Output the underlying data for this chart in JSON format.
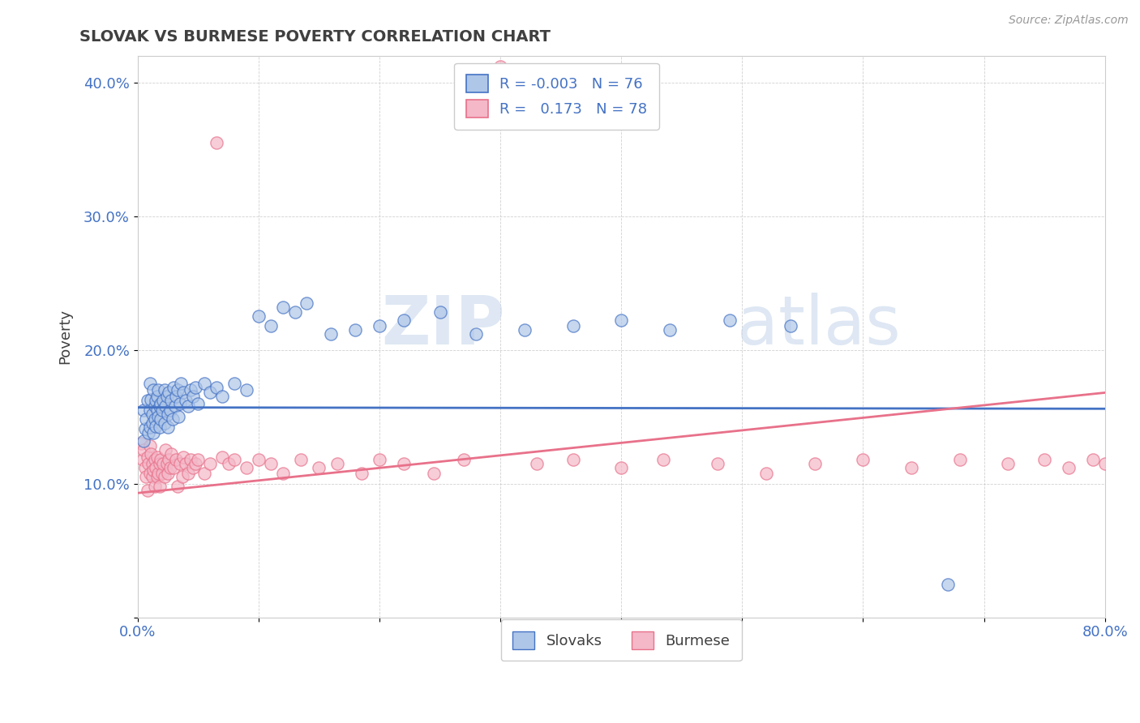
{
  "title": "SLOVAK VS BURMESE POVERTY CORRELATION CHART",
  "source": "Source: ZipAtlas.com",
  "ylabel": "Poverty",
  "xlim": [
    0.0,
    0.8
  ],
  "ylim": [
    0.0,
    0.42
  ],
  "xticks": [
    0.0,
    0.1,
    0.2,
    0.3,
    0.4,
    0.5,
    0.6,
    0.7,
    0.8
  ],
  "xticklabels": [
    "0.0%",
    "",
    "",
    "",
    "",
    "",
    "",
    "",
    "80.0%"
  ],
  "yticks": [
    0.0,
    0.1,
    0.2,
    0.3,
    0.4
  ],
  "yticklabels": [
    "",
    "10.0%",
    "20.0%",
    "30.0%",
    "40.0%"
  ],
  "slovak_color": "#aec6e8",
  "burmese_color": "#f4b8c8",
  "slovak_line_color": "#4472c4",
  "burmese_line_color": "#e8718a",
  "legend_slovak_label": "Slovaks",
  "legend_burmese_label": "Burmese",
  "R_slovak": -0.003,
  "N_slovak": 76,
  "R_burmese": 0.173,
  "N_burmese": 78,
  "watermark_zip": "ZIP",
  "watermark_atlas": "atlas",
  "title_color": "#404040",
  "axis_label_color": "#4472c4",
  "background_color": "#ffffff",
  "slovak_line_y0": 0.157,
  "slovak_line_y1": 0.156,
  "burmese_line_y0": 0.093,
  "burmese_line_y1": 0.168,
  "slovak_x": [
    0.005,
    0.005,
    0.006,
    0.007,
    0.008,
    0.009,
    0.01,
    0.01,
    0.01,
    0.011,
    0.012,
    0.012,
    0.013,
    0.013,
    0.014,
    0.014,
    0.015,
    0.015,
    0.016,
    0.016,
    0.017,
    0.017,
    0.018,
    0.018,
    0.019,
    0.019,
    0.02,
    0.021,
    0.022,
    0.022,
    0.023,
    0.024,
    0.025,
    0.025,
    0.026,
    0.027,
    0.028,
    0.029,
    0.03,
    0.031,
    0.032,
    0.033,
    0.034,
    0.035,
    0.036,
    0.038,
    0.04,
    0.042,
    0.044,
    0.046,
    0.048,
    0.05,
    0.055,
    0.06,
    0.065,
    0.07,
    0.08,
    0.09,
    0.1,
    0.11,
    0.12,
    0.13,
    0.14,
    0.16,
    0.18,
    0.2,
    0.22,
    0.25,
    0.28,
    0.32,
    0.36,
    0.4,
    0.44,
    0.49,
    0.54,
    0.67
  ],
  "slovak_y": [
    0.155,
    0.132,
    0.141,
    0.148,
    0.162,
    0.138,
    0.175,
    0.155,
    0.142,
    0.163,
    0.152,
    0.145,
    0.138,
    0.17,
    0.158,
    0.148,
    0.162,
    0.143,
    0.155,
    0.165,
    0.15,
    0.17,
    0.158,
    0.142,
    0.16,
    0.148,
    0.155,
    0.162,
    0.17,
    0.145,
    0.158,
    0.165,
    0.152,
    0.142,
    0.168,
    0.155,
    0.162,
    0.148,
    0.172,
    0.158,
    0.165,
    0.17,
    0.15,
    0.16,
    0.175,
    0.168,
    0.162,
    0.158,
    0.17,
    0.165,
    0.172,
    0.16,
    0.175,
    0.168,
    0.172,
    0.165,
    0.175,
    0.17,
    0.225,
    0.218,
    0.232,
    0.228,
    0.235,
    0.212,
    0.215,
    0.218,
    0.222,
    0.228,
    0.212,
    0.215,
    0.218,
    0.222,
    0.215,
    0.222,
    0.218,
    0.025
  ],
  "burmese_x": [
    0.003,
    0.004,
    0.005,
    0.006,
    0.007,
    0.008,
    0.008,
    0.009,
    0.01,
    0.01,
    0.011,
    0.012,
    0.012,
    0.013,
    0.014,
    0.014,
    0.015,
    0.016,
    0.016,
    0.017,
    0.018,
    0.018,
    0.019,
    0.02,
    0.021,
    0.022,
    0.023,
    0.024,
    0.025,
    0.026,
    0.027,
    0.028,
    0.03,
    0.032,
    0.033,
    0.035,
    0.037,
    0.038,
    0.04,
    0.042,
    0.044,
    0.046,
    0.048,
    0.05,
    0.055,
    0.06,
    0.065,
    0.07,
    0.075,
    0.08,
    0.09,
    0.1,
    0.11,
    0.12,
    0.135,
    0.15,
    0.165,
    0.185,
    0.2,
    0.22,
    0.245,
    0.27,
    0.3,
    0.33,
    0.36,
    0.4,
    0.435,
    0.48,
    0.52,
    0.56,
    0.6,
    0.64,
    0.68,
    0.72,
    0.75,
    0.77,
    0.79,
    0.8
  ],
  "burmese_y": [
    0.13,
    0.118,
    0.125,
    0.112,
    0.105,
    0.12,
    0.095,
    0.115,
    0.128,
    0.108,
    0.122,
    0.105,
    0.115,
    0.11,
    0.118,
    0.098,
    0.112,
    0.105,
    0.12,
    0.108,
    0.115,
    0.098,
    0.118,
    0.108,
    0.115,
    0.105,
    0.125,
    0.115,
    0.108,
    0.118,
    0.112,
    0.122,
    0.112,
    0.118,
    0.098,
    0.115,
    0.105,
    0.12,
    0.115,
    0.108,
    0.118,
    0.112,
    0.115,
    0.118,
    0.108,
    0.115,
    0.355,
    0.12,
    0.115,
    0.118,
    0.112,
    0.118,
    0.115,
    0.108,
    0.118,
    0.112,
    0.115,
    0.108,
    0.118,
    0.115,
    0.108,
    0.118,
    0.412,
    0.115,
    0.118,
    0.112,
    0.118,
    0.115,
    0.108,
    0.115,
    0.118,
    0.112,
    0.118,
    0.115,
    0.118,
    0.112,
    0.118,
    0.115
  ]
}
